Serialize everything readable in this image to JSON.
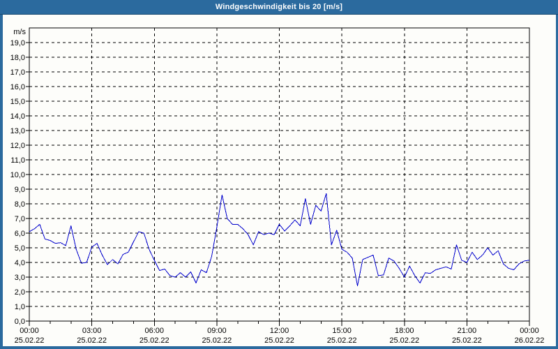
{
  "window": {
    "title": "Windgeschwindigkeit bis 20 [m/s]"
  },
  "colors": {
    "frame": "#2b6a9e",
    "titlebar": "#2b6a9e",
    "titlebar_edge": "#17486e",
    "title_text": "#ffffff",
    "panel_background": "#fdfdfa",
    "grid": "#000000",
    "axis": "#000000",
    "text": "#000000",
    "line": "#0000cc"
  },
  "chart_data": {
    "type": "line",
    "title": "Windgeschwindigkeit bis 20 [m/s]",
    "ylabel": "m/s",
    "xlabel": "",
    "ylim": [
      0,
      20
    ],
    "ytick_step": 1,
    "ytick_label_max": 19,
    "decimal_separator": ",",
    "grid": true,
    "legend": "none",
    "x_hours_range": [
      0,
      24
    ],
    "x_minor_step_hours": 1,
    "x_major_step_hours": 3,
    "x_major_ticks": [
      {
        "time": "00:00",
        "date": "25.02.22"
      },
      {
        "time": "03:00",
        "date": "25.02.22"
      },
      {
        "time": "06:00",
        "date": "25.02.22"
      },
      {
        "time": "09:00",
        "date": "25.02.22"
      },
      {
        "time": "12:00",
        "date": "25.02.22"
      },
      {
        "time": "15:00",
        "date": "25.02.22"
      },
      {
        "time": "18:00",
        "date": "25.02.22"
      },
      {
        "time": "21:00",
        "date": "25.02.22"
      },
      {
        "time": "00:00",
        "date": "26.02.22"
      }
    ],
    "series": [
      {
        "name": "Windgeschwindigkeit [m/s]",
        "x_start_hours": 0,
        "x_step_hours": 0.25,
        "values": [
          6.1,
          6.3,
          6.6,
          5.6,
          5.5,
          5.3,
          5.35,
          5.15,
          6.5,
          4.9,
          3.95,
          4.0,
          5.05,
          5.3,
          4.5,
          3.85,
          4.2,
          3.9,
          4.55,
          4.7,
          5.4,
          6.1,
          6.0,
          4.9,
          4.15,
          3.45,
          3.55,
          3.1,
          3.0,
          3.3,
          3.0,
          3.35,
          2.6,
          3.5,
          3.3,
          4.4,
          6.4,
          8.6,
          7.0,
          6.6,
          6.6,
          6.3,
          5.9,
          5.2,
          6.1,
          5.9,
          6.0,
          5.9,
          6.6,
          6.15,
          6.5,
          6.9,
          6.5,
          8.35,
          6.6,
          7.9,
          7.5,
          8.7,
          5.2,
          6.2,
          4.9,
          4.7,
          4.3,
          2.4,
          4.2,
          4.35,
          4.5,
          3.1,
          3.15,
          4.3,
          4.1,
          3.6,
          3.0,
          3.75,
          3.1,
          2.6,
          3.3,
          3.25,
          3.5,
          3.6,
          3.7,
          3.55,
          5.2,
          4.15,
          4.0,
          4.7,
          4.2,
          4.5,
          5.0,
          4.5,
          4.8,
          3.9,
          3.6,
          3.5,
          3.9,
          4.1,
          4.15
        ]
      }
    ]
  }
}
